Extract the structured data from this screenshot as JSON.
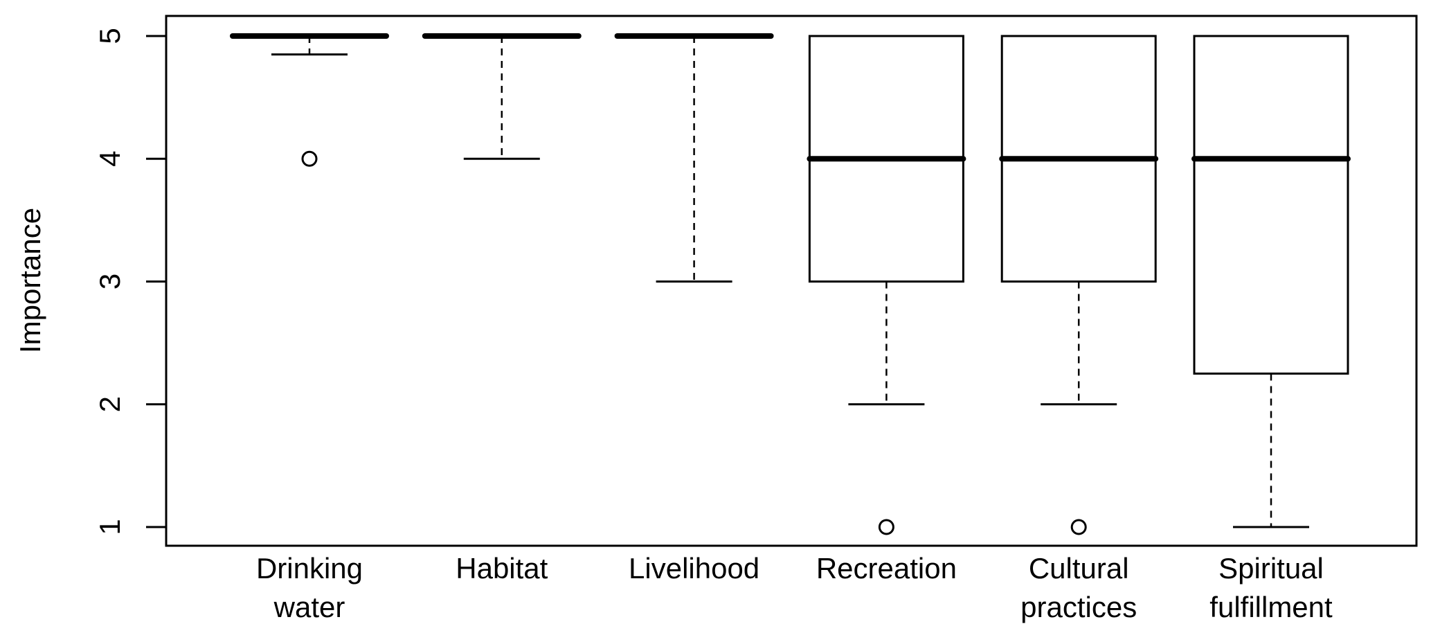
{
  "chart_data": {
    "type": "boxplot",
    "title": "",
    "xlabel": "",
    "ylabel": "Importance",
    "ylim": [
      0.82,
      5.18
    ],
    "yticks": [
      "1",
      "2",
      "3",
      "4",
      "5"
    ],
    "grid": false,
    "categories": [
      [
        "Drinking",
        "water"
      ],
      [
        "Habitat"
      ],
      [
        "Livelihood"
      ],
      [
        "Recreation"
      ],
      [
        "Cultural",
        "practices"
      ],
      [
        "Spiritual",
        "fulfillment"
      ]
    ],
    "boxes": [
      {
        "name": "Drinking water",
        "whisker_low": 4.85,
        "q1": 5,
        "median": 5,
        "q3": 5,
        "whisker_high": 5,
        "outliers": [
          4
        ]
      },
      {
        "name": "Habitat",
        "whisker_low": 4,
        "q1": 5,
        "median": 5,
        "q3": 5,
        "whisker_high": 5,
        "outliers": []
      },
      {
        "name": "Livelihood",
        "whisker_low": 3,
        "q1": 5,
        "median": 5,
        "q3": 5,
        "whisker_high": 5,
        "outliers": []
      },
      {
        "name": "Recreation",
        "whisker_low": 2,
        "q1": 3,
        "median": 4,
        "q3": 5,
        "whisker_high": 5,
        "outliers": [
          1
        ]
      },
      {
        "name": "Cultural practices",
        "whisker_low": 2,
        "q1": 3,
        "median": 4,
        "q3": 5,
        "whisker_high": 5,
        "outliers": [
          1
        ]
      },
      {
        "name": "Spiritual fulfillment",
        "whisker_low": 1,
        "q1": 2.25,
        "median": 4,
        "q3": 5,
        "whisker_high": 5,
        "outliers": []
      }
    ]
  }
}
